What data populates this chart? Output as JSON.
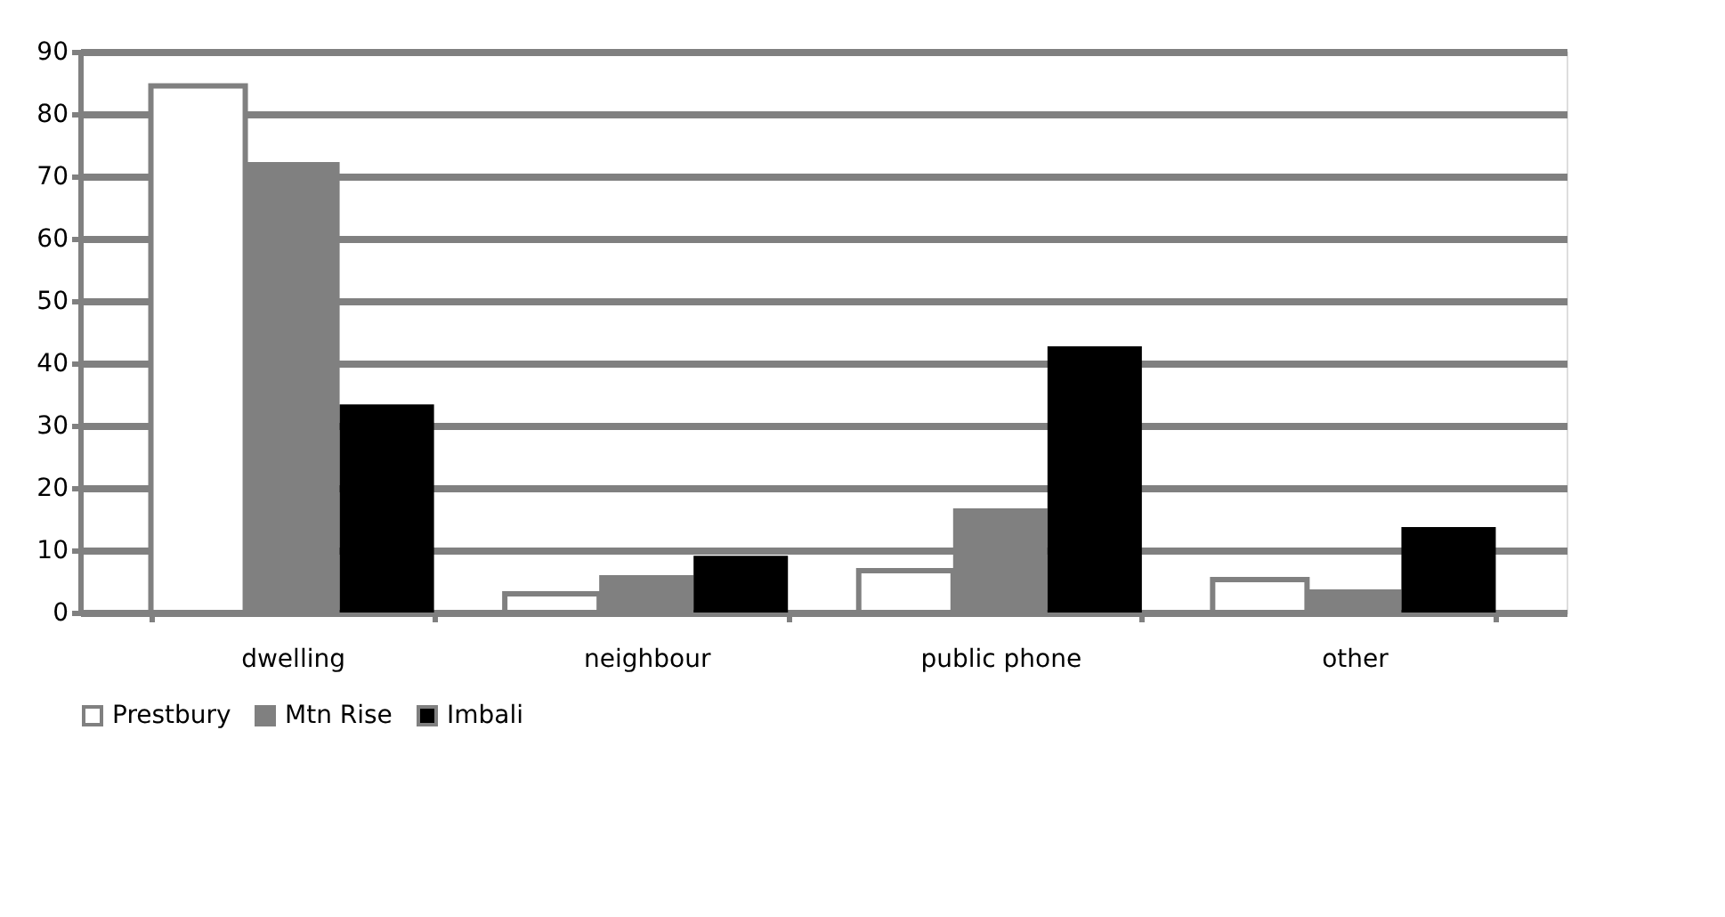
{
  "chart_data": {
    "type": "bar",
    "categories": [
      "dwelling",
      "neighbour",
      "public phone",
      "other"
    ],
    "series": [
      {
        "name": "Prestbury",
        "color": "#ffffff",
        "values": [
          84.5,
          3,
          6.7,
          5.3
        ]
      },
      {
        "name": "Mtn Rise",
        "color": "#808080",
        "values": [
          72.3,
          6,
          16.7,
          3.7
        ]
      },
      {
        "name": "Imbali",
        "color": "#000000",
        "values": [
          33.4,
          9.1,
          42.7,
          13.7
        ]
      }
    ],
    "ylim": [
      0,
      90
    ],
    "yticks": [
      0,
      10,
      20,
      30,
      40,
      50,
      60,
      70,
      80,
      90
    ],
    "grid": "y",
    "legend": "bottom"
  }
}
